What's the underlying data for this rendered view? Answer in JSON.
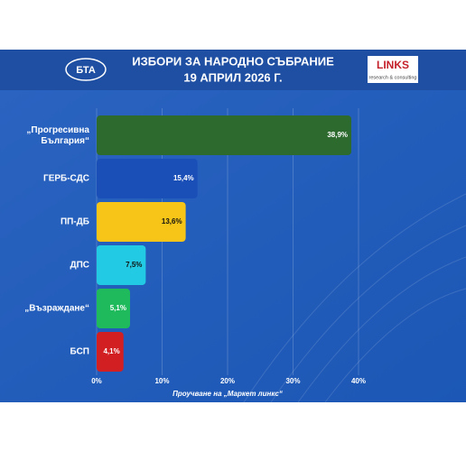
{
  "header": {
    "logo_left": "БТА",
    "logo_right": "LINKS",
    "logo_right_sub": "research & consulting"
  },
  "chart_data": {
    "type": "barh",
    "title": "ИЗБОРИ ЗА НАРОДНО СЪБРАНИЕ",
    "subtitle": "19 АПРИЛ 2026 Г.",
    "source": "Проучване на „Маркет линкс“",
    "categories": [
      "„Прогресивна България“",
      "ГЕРБ-СДС",
      "ПП-ДБ",
      "ДПС",
      "„Възраждане“",
      "БСП"
    ],
    "values": [
      38.9,
      15.4,
      13.6,
      7.5,
      5.1,
      4.1
    ],
    "value_labels": [
      "38,9%",
      "15,4%",
      "13,6%",
      "7,5%",
      "5,1%",
      "4,1%"
    ],
    "colors": [
      "#2c6a2e",
      "#1a4fb8",
      "#f6c517",
      "#22cbe3",
      "#1fba5c",
      "#d21f22"
    ],
    "xlim": [
      0,
      40
    ],
    "xticks": [
      {
        "value": 0,
        "label": "0%"
      },
      {
        "value": 10,
        "label": "10%"
      },
      {
        "value": 20,
        "label": "20%"
      },
      {
        "value": 30,
        "label": "30%"
      },
      {
        "value": 40,
        "label": "40%"
      }
    ],
    "grid": true
  }
}
